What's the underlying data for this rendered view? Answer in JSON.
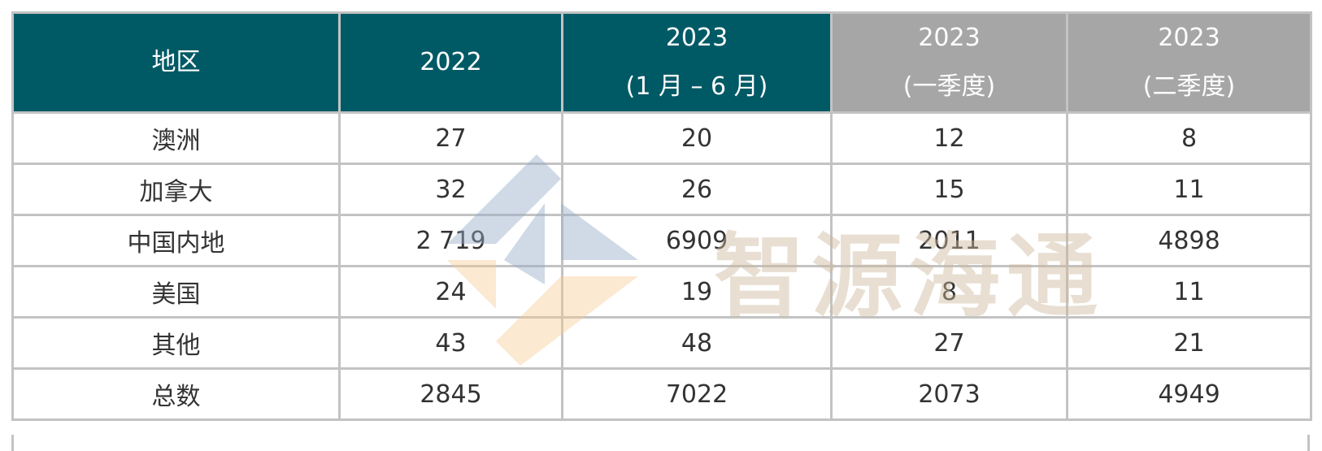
{
  "table": {
    "header": [
      [
        "地区"
      ],
      [
        "2022"
      ],
      [
        "2023",
        "(1 月 – 6 月)"
      ],
      [
        "2023",
        "(一季度)"
      ],
      [
        "2023",
        "(二季度)"
      ]
    ],
    "rows": [
      [
        "澳洲",
        "27",
        "20",
        "12",
        "8"
      ],
      [
        "加拿大",
        "32",
        "26",
        "15",
        "11"
      ],
      [
        "中国内地",
        "2 719",
        "6909",
        "2011",
        "4898"
      ],
      [
        "美国",
        "24",
        "19",
        "8",
        "11"
      ],
      [
        "其他",
        "43",
        "48",
        "27",
        "21"
      ],
      [
        "总数",
        "2845",
        "7022",
        "2073",
        "4949"
      ]
    ]
  },
  "watermark": {
    "text": "智源海通"
  }
}
